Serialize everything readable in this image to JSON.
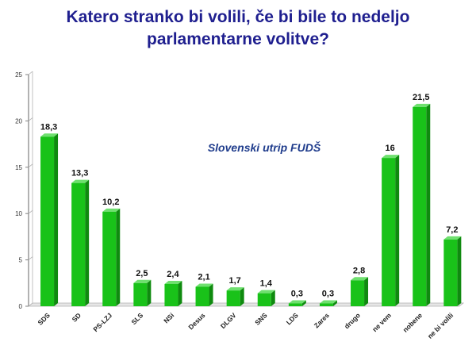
{
  "title": {
    "line1": "Katero stranko bi volili, če bi bile to nedeljo",
    "line2": "parlamentarne  volitve?"
  },
  "chart_data": {
    "type": "bar",
    "annotation": "Slovenski utrip FUDŠ",
    "categories": [
      "SDS",
      "SD",
      "PS-LZJ",
      "SLS",
      "NSi",
      "Desus",
      "DLGV",
      "SNS",
      "LDS",
      "Zares",
      "drugo",
      "ne vem",
      "nobene",
      "ne bi volili"
    ],
    "values": [
      18.3,
      13.3,
      10.2,
      2.5,
      2.4,
      2.1,
      1.7,
      1.4,
      0.3,
      0.3,
      2.8,
      16,
      21.5,
      7.2
    ],
    "value_labels": [
      "18,3",
      "13,3",
      "10,2",
      "2,5",
      "2,4",
      "2,1",
      "1,7",
      "1,4",
      "0,3",
      "0,3",
      "2,8",
      "16",
      "21,5",
      "7,2"
    ],
    "ylim": [
      0,
      25
    ],
    "yticks": [
      0,
      5,
      10,
      15,
      20,
      25
    ],
    "xlabel": "",
    "ylabel": "",
    "grid": false,
    "legend": "none",
    "bar_color": "#19c219",
    "bar_side_color": "#0f8a0f",
    "bar_top_color": "#6fe06f",
    "title_color": "#1f1f8f",
    "annotation_color": "#1f3c8c"
  }
}
